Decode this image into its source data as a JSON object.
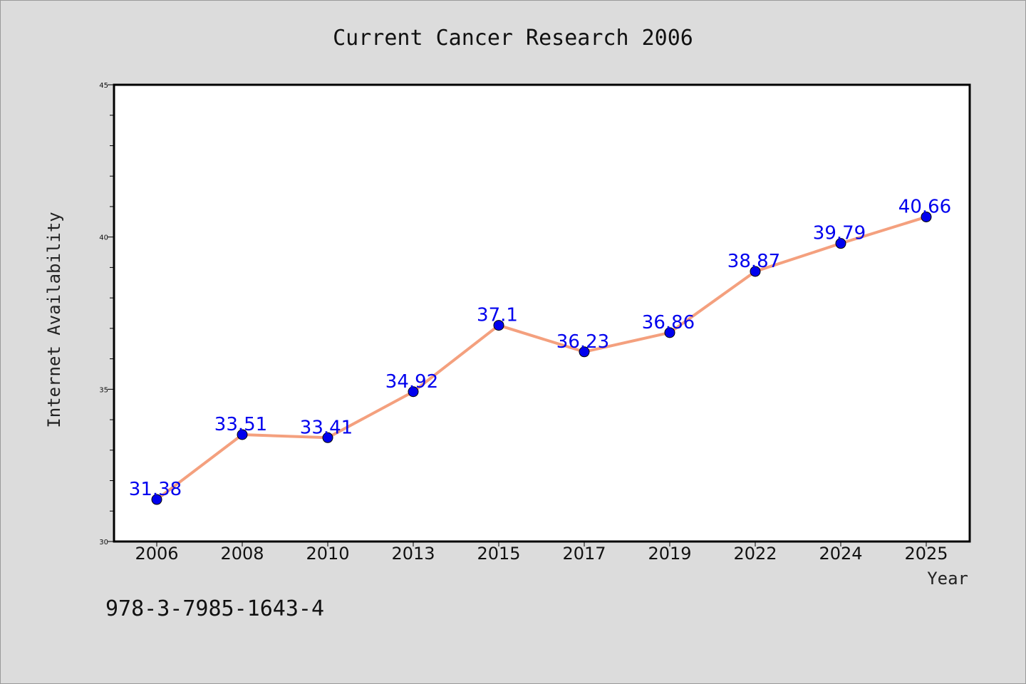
{
  "isbn": "978-3-7985-1643-4",
  "colors": {
    "background": "#dcdcdc",
    "plot_background": "#ffffff",
    "line": "#f4a07e",
    "marker": "#0000ee",
    "data_label": "#0000ee"
  },
  "chart_data": {
    "type": "line",
    "title": "Current Cancer Research 2006",
    "xlabel": "Year",
    "ylabel": "Internet Availability",
    "categories": [
      "2006",
      "2008",
      "2010",
      "2013",
      "2015",
      "2017",
      "2019",
      "2022",
      "2024",
      "2025"
    ],
    "series": [
      {
        "values": [
          31.38,
          33.51,
          33.41,
          34.92,
          37.1,
          36.23,
          36.86,
          38.87,
          39.79,
          40.66
        ],
        "labels": [
          "31.38",
          "33.51",
          "33.41",
          "34.92",
          "37.1",
          "36.23",
          "36.86",
          "38.87",
          "39.79",
          "40.66"
        ]
      }
    ],
    "ylim": [
      30,
      45
    ],
    "yticks": [
      30,
      35,
      40,
      45
    ],
    "ytick_labels": [
      "30",
      "35",
      "40",
      "45"
    ],
    "grid": false,
    "legend": "none"
  }
}
